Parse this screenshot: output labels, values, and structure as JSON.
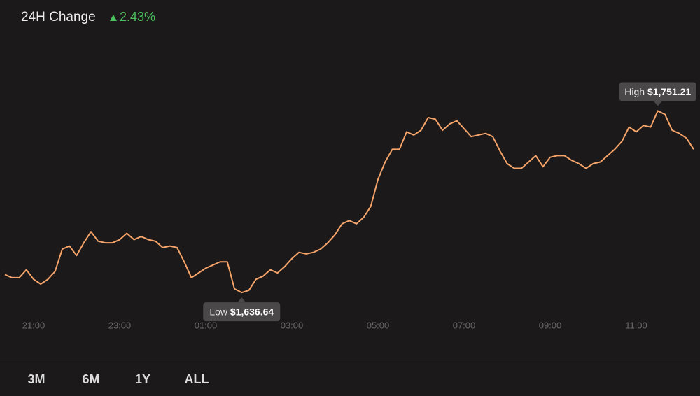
{
  "header": {
    "label": "24H Change",
    "change": "2.43%"
  },
  "chart_data": {
    "type": "line",
    "x": [
      "20:20",
      "20:30",
      "20:40",
      "20:50",
      "21:00",
      "21:10",
      "21:20",
      "21:30",
      "21:40",
      "21:50",
      "22:00",
      "22:10",
      "22:20",
      "22:30",
      "22:40",
      "22:50",
      "23:00",
      "23:10",
      "23:20",
      "23:30",
      "23:40",
      "23:50",
      "00:00",
      "00:10",
      "00:20",
      "00:30",
      "00:40",
      "00:50",
      "01:00",
      "01:10",
      "01:20",
      "01:30",
      "01:40",
      "01:50",
      "02:00",
      "02:10",
      "02:20",
      "02:30",
      "02:40",
      "02:50",
      "03:00",
      "03:10",
      "03:20",
      "03:30",
      "03:40",
      "03:50",
      "04:00",
      "04:10",
      "04:20",
      "04:30",
      "04:40",
      "04:50",
      "05:00",
      "05:10",
      "05:20",
      "05:30",
      "05:40",
      "05:50",
      "06:00",
      "06:10",
      "06:20",
      "06:30",
      "06:40",
      "06:50",
      "07:00",
      "07:10",
      "07:20",
      "07:30",
      "07:40",
      "07:50",
      "08:00",
      "08:10",
      "08:20",
      "08:30",
      "08:40",
      "08:50",
      "09:00",
      "09:10",
      "09:20",
      "09:30",
      "09:40",
      "09:50",
      "10:00",
      "10:10",
      "10:20",
      "10:30",
      "10:40",
      "10:50",
      "11:00",
      "11:10",
      "11:20",
      "11:30",
      "11:40",
      "11:50",
      "12:00",
      "12:10",
      "12:20"
    ],
    "series": [
      {
        "color": "#f6a46a",
        "values": [
          1648,
          1646,
          1646,
          1651,
          1645,
          1642,
          1645,
          1650,
          1664,
          1666,
          1660,
          1668,
          1675,
          1669,
          1668,
          1668,
          1670,
          1674,
          1670,
          1672,
          1670,
          1669,
          1665,
          1666,
          1665,
          1656,
          1646,
          1649,
          1652,
          1654,
          1656,
          1656,
          1639,
          1636.64,
          1638,
          1645,
          1647,
          1651,
          1649,
          1653,
          1658,
          1662,
          1661,
          1662,
          1664,
          1668,
          1673,
          1680,
          1682,
          1680,
          1684,
          1691,
          1708,
          1719,
          1727,
          1727,
          1738,
          1736,
          1739,
          1747,
          1746,
          1739,
          1743,
          1745,
          1740,
          1735,
          1736,
          1737,
          1735,
          1726,
          1718,
          1715,
          1715,
          1719,
          1723,
          1716,
          1722,
          1723,
          1723,
          1720,
          1718,
          1715,
          1718,
          1719,
          1723,
          1727,
          1732,
          1741,
          1738,
          1742,
          1741,
          1751.21,
          1749,
          1739,
          1737,
          1734,
          1727
        ],
        "value_labels": [
          null,
          null,
          null,
          null,
          null,
          null,
          null,
          null,
          null,
          null,
          null,
          null,
          null,
          null,
          null,
          null,
          null,
          null,
          null,
          null,
          null,
          null,
          null,
          null,
          null,
          null,
          null,
          null,
          null,
          null,
          null,
          null,
          null,
          "$1,636.64",
          null,
          null,
          null,
          null,
          null,
          null,
          null,
          null,
          null,
          null,
          null,
          null,
          null,
          null,
          null,
          null,
          null,
          null,
          null,
          null,
          null,
          null,
          null,
          null,
          null,
          null,
          null,
          null,
          null,
          null,
          null,
          null,
          null,
          null,
          null,
          null,
          null,
          null,
          null,
          null,
          null,
          null,
          null,
          null,
          null,
          null,
          null,
          null,
          null,
          null,
          null,
          null,
          null,
          null,
          null,
          null,
          null,
          "$1,751.21",
          null,
          null,
          null,
          null,
          null
        ]
      }
    ],
    "xticks": [
      "21:00",
      "23:00",
      "01:00",
      "03:00",
      "05:00",
      "07:00",
      "09:00",
      "11:00"
    ],
    "ylim": [
      1627,
      1777
    ],
    "annotations": {
      "high": "High",
      "low": "Low"
    }
  },
  "ranges": [
    "3M",
    "6M",
    "1Y",
    "ALL"
  ]
}
